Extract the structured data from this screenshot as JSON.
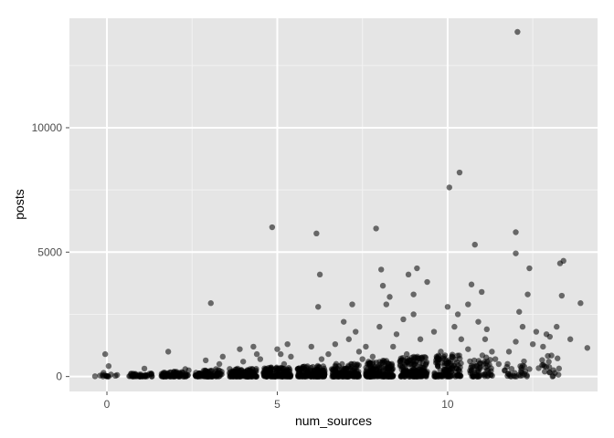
{
  "chart_data": {
    "type": "scatter",
    "title": "",
    "xlabel": "num_sources",
    "ylabel": "posts",
    "xlim": [
      -1.1,
      14.4
    ],
    "ylim": [
      -600,
      14400
    ],
    "x_ticks": [
      0,
      5,
      10
    ],
    "x_tick_labels": [
      "0",
      "5",
      "10"
    ],
    "y_ticks": [
      0,
      5000,
      10000
    ],
    "y_tick_labels": [
      "0",
      "5000",
      "10000"
    ],
    "grid": true,
    "legend": "none",
    "colors": {
      "panel": "#e5e5e5",
      "grid_major": "#ffffff",
      "grid_minor": "#f2f2f2",
      "point": "#000000"
    },
    "jitter": true,
    "points": [
      [
        -0.35,
        10
      ],
      [
        -0.2,
        40
      ],
      [
        -0.05,
        900
      ],
      [
        0.05,
        420
      ],
      [
        0.12,
        80
      ],
      [
        0.25,
        30
      ],
      [
        -0.1,
        150
      ],
      [
        0.3,
        60
      ],
      [
        0.8,
        40
      ],
      [
        1.0,
        80
      ],
      [
        1.1,
        320
      ],
      [
        1.3,
        120
      ],
      [
        1.6,
        20
      ],
      [
        1.9,
        60
      ],
      [
        2.2,
        180
      ],
      [
        2.4,
        250
      ],
      [
        2.7,
        70
      ],
      [
        1.8,
        1000
      ],
      [
        2.3,
        300
      ],
      [
        2.0,
        120
      ],
      [
        3.0,
        100
      ],
      [
        3.2,
        300
      ],
      [
        3.4,
        800
      ],
      [
        3.6,
        140
      ],
      [
        2.9,
        650
      ],
      [
        3.05,
        2950
      ],
      [
        3.3,
        500
      ],
      [
        3.8,
        200
      ],
      [
        4.0,
        600
      ],
      [
        4.2,
        300
      ],
      [
        4.4,
        900
      ],
      [
        4.6,
        150
      ],
      [
        3.9,
        1100
      ],
      [
        4.3,
        1200
      ],
      [
        4.5,
        700
      ],
      [
        4.8,
        250
      ],
      [
        5.0,
        1100
      ],
      [
        5.2,
        500
      ],
      [
        5.4,
        800
      ],
      [
        5.6,
        300
      ],
      [
        4.85,
        6000
      ],
      [
        5.3,
        1300
      ],
      [
        5.1,
        900
      ],
      [
        5.8,
        400
      ],
      [
        6.0,
        1200
      ],
      [
        6.3,
        700
      ],
      [
        6.5,
        900
      ],
      [
        6.6,
        300
      ],
      [
        6.15,
        5750
      ],
      [
        6.25,
        4100
      ],
      [
        6.2,
        2800
      ],
      [
        6.7,
        1300
      ],
      [
        6.9,
        500
      ],
      [
        7.1,
        1500
      ],
      [
        7.3,
        1800
      ],
      [
        7.5,
        700
      ],
      [
        7.6,
        1200
      ],
      [
        7.2,
        2900
      ],
      [
        6.95,
        2200
      ],
      [
        7.4,
        1000
      ],
      [
        7.8,
        800
      ],
      [
        8.0,
        2000
      ],
      [
        8.2,
        2900
      ],
      [
        8.4,
        1200
      ],
      [
        8.6,
        600
      ],
      [
        7.9,
        5950
      ],
      [
        8.05,
        4300
      ],
      [
        8.3,
        3200
      ],
      [
        8.1,
        3650
      ],
      [
        8.5,
        1700
      ],
      [
        8.8,
        900
      ],
      [
        9.0,
        2500
      ],
      [
        9.2,
        1500
      ],
      [
        9.4,
        3800
      ],
      [
        9.6,
        1800
      ],
      [
        8.85,
        4100
      ],
      [
        9.1,
        4350
      ],
      [
        9.0,
        3300
      ],
      [
        8.7,
        2300
      ],
      [
        9.8,
        1000
      ],
      [
        10.0,
        2800
      ],
      [
        10.2,
        2000
      ],
      [
        10.4,
        1500
      ],
      [
        10.6,
        1100
      ],
      [
        10.05,
        7600
      ],
      [
        10.35,
        8200
      ],
      [
        10.8,
        5300
      ],
      [
        10.7,
        3700
      ],
      [
        10.3,
        2500
      ],
      [
        10.6,
        2900
      ],
      [
        10.9,
        2200
      ],
      [
        11.1,
        1500
      ],
      [
        11.3,
        1000
      ],
      [
        11.5,
        500
      ],
      [
        11.0,
        3400
      ],
      [
        11.15,
        1900
      ],
      [
        11.4,
        700
      ],
      [
        11.8,
        1000
      ],
      [
        12.0,
        1400
      ],
      [
        12.2,
        2000
      ],
      [
        12.4,
        300
      ],
      [
        12.5,
        1300
      ],
      [
        12.05,
        13850
      ],
      [
        12.0,
        5800
      ],
      [
        12.0,
        4950
      ],
      [
        12.4,
        4350
      ],
      [
        12.1,
        2600
      ],
      [
        12.35,
        3300
      ],
      [
        12.6,
        1800
      ],
      [
        12.8,
        1200
      ],
      [
        13.0,
        1600
      ],
      [
        13.2,
        2000
      ],
      [
        13.4,
        4650
      ],
      [
        13.3,
        4550
      ],
      [
        13.35,
        3250
      ],
      [
        13.6,
        1500
      ],
      [
        13.9,
        2950
      ],
      [
        14.1,
        1150
      ],
      [
        12.9,
        1700
      ]
    ]
  }
}
